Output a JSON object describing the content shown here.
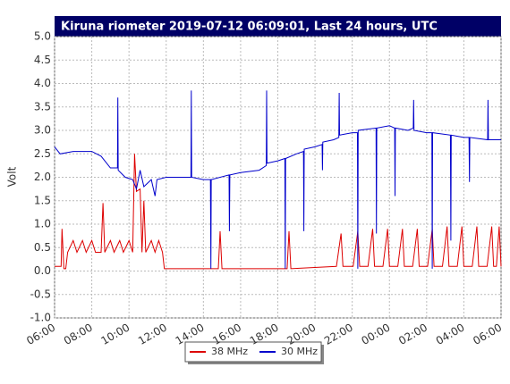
{
  "chart_data": {
    "type": "line",
    "title": "Kiruna riometer 2019-07-12 06:09:01, Last 24 hours, UTC",
    "y_label": "Volt",
    "xlim": [
      0,
      24
    ],
    "ylim": [
      -1,
      5
    ],
    "yticks": [
      {
        "value": -1,
        "label": "-1.0"
      },
      {
        "value": -0.5,
        "label": "-0.5"
      },
      {
        "value": 0,
        "label": "0.0"
      },
      {
        "value": 0.5,
        "label": "0.5"
      },
      {
        "value": 1,
        "label": "1.0"
      },
      {
        "value": 1.5,
        "label": "1.5"
      },
      {
        "value": 2,
        "label": "2.0"
      },
      {
        "value": 2.5,
        "label": "2.5"
      },
      {
        "value": 3,
        "label": "3.0"
      },
      {
        "value": 3.5,
        "label": "3.5"
      },
      {
        "value": 4,
        "label": "4.0"
      },
      {
        "value": 4.5,
        "label": "4.5"
      },
      {
        "value": 5,
        "label": "5.0"
      }
    ],
    "xticks": [
      {
        "value": 0,
        "label": "06:00"
      },
      {
        "value": 2,
        "label": "08:00"
      },
      {
        "value": 4,
        "label": "10:00"
      },
      {
        "value": 6,
        "label": "12:00"
      },
      {
        "value": 8,
        "label": "14:00"
      },
      {
        "value": 10,
        "label": "16:00"
      },
      {
        "value": 12,
        "label": "18:00"
      },
      {
        "value": 14,
        "label": "20:00"
      },
      {
        "value": 16,
        "label": "22:00"
      },
      {
        "value": 18,
        "label": "00:00"
      },
      {
        "value": 20,
        "label": "02:00"
      },
      {
        "value": 22,
        "label": "04:00"
      },
      {
        "value": 24,
        "label": "06:00"
      }
    ],
    "grid": true,
    "series": [
      {
        "name": "38 MHz",
        "color": "#dd0000",
        "x": [
          0,
          0.35,
          0.4,
          0.5,
          0.6,
          0.7,
          1,
          1.2,
          1.5,
          1.7,
          2,
          2.2,
          2.5,
          2.6,
          2.7,
          3,
          3.2,
          3.5,
          3.7,
          4,
          4.2,
          4.3,
          4.4,
          4.6,
          4.7,
          4.8,
          4.9,
          5.2,
          5.4,
          5.6,
          5.8,
          5.9,
          8.8,
          8.9,
          9.0,
          12.5,
          12.6,
          12.7,
          15.15,
          15.4,
          15.5,
          16.05,
          16.3,
          16.4,
          16.85,
          17.1,
          17.2,
          17.65,
          17.9,
          18.0,
          18.45,
          18.7,
          18.8,
          19.25,
          19.5,
          19.6,
          20.05,
          20.3,
          20.4,
          20.85,
          21.1,
          21.2,
          21.65,
          21.9,
          22.0,
          22.45,
          22.7,
          22.8,
          23.25,
          23.5,
          23.6,
          23.75,
          23.9,
          24
        ],
        "values": [
          0.1,
          0.1,
          0.9,
          0.05,
          0.05,
          0.4,
          0.65,
          0.4,
          0.65,
          0.4,
          0.65,
          0.4,
          0.4,
          1.45,
          0.4,
          0.65,
          0.4,
          0.65,
          0.4,
          0.65,
          0.4,
          2.5,
          1.7,
          1.75,
          0.4,
          1.5,
          0.4,
          0.65,
          0.4,
          0.65,
          0.4,
          0.05,
          0.05,
          0.85,
          0.05,
          0.05,
          0.85,
          0.05,
          0.1,
          0.8,
          0.1,
          0.1,
          0.85,
          0.1,
          0.1,
          0.9,
          0.1,
          0.1,
          0.9,
          0.1,
          0.1,
          0.9,
          0.1,
          0.1,
          0.9,
          0.1,
          0.1,
          0.9,
          0.1,
          0.1,
          0.95,
          0.1,
          0.1,
          0.95,
          0.1,
          0.1,
          0.95,
          0.1,
          0.1,
          0.95,
          0.1,
          0.1,
          0.95,
          0.1
        ]
      },
      {
        "name": "30 MHz",
        "color": "#0000cc",
        "x": [
          0,
          0.3,
          1,
          2,
          2.5,
          3,
          3.38,
          3.4,
          3.42,
          3.8,
          4.2,
          4.4,
          4.6,
          4.8,
          5.2,
          5.4,
          5.5,
          6,
          7,
          7.33,
          7.35,
          7.37,
          8,
          8.38,
          8.4,
          8.42,
          9.38,
          9.4,
          9.42,
          10,
          11,
          11.38,
          11.4,
          11.42,
          12,
          12.38,
          12.4,
          12.42,
          13,
          13.38,
          13.4,
          13.42,
          14,
          14.38,
          14.4,
          14.42,
          15,
          15.28,
          15.3,
          15.32,
          16,
          16.28,
          16.3,
          16.32,
          17.28,
          17.3,
          17.32,
          18,
          18.28,
          18.3,
          18.32,
          19,
          19.28,
          19.3,
          19.32,
          20,
          20.28,
          20.3,
          20.32,
          21.28,
          21.3,
          21.32,
          22,
          22.28,
          22.3,
          22.32,
          23.28,
          23.3,
          23.32,
          24
        ],
        "values": [
          2.65,
          2.5,
          2.55,
          2.55,
          2.45,
          2.2,
          2.2,
          3.7,
          2.15,
          2.0,
          1.95,
          1.75,
          2.15,
          1.8,
          1.95,
          1.6,
          1.95,
          2.0,
          2.0,
          2.0,
          3.85,
          2.0,
          1.95,
          1.95,
          0.05,
          1.95,
          2.05,
          0.85,
          2.05,
          2.1,
          2.15,
          2.25,
          3.85,
          2.3,
          2.35,
          2.4,
          0.05,
          2.4,
          2.5,
          2.55,
          0.85,
          2.6,
          2.65,
          2.7,
          2.15,
          2.75,
          2.8,
          2.85,
          3.8,
          2.9,
          2.95,
          2.95,
          0.05,
          3.0,
          3.05,
          0.8,
          3.05,
          3.1,
          3.05,
          1.6,
          3.05,
          3.0,
          3.05,
          3.65,
          3.0,
          2.95,
          2.95,
          0.05,
          2.95,
          2.9,
          0.65,
          2.9,
          2.85,
          2.85,
          1.9,
          2.85,
          2.8,
          3.65,
          2.8,
          2.8
        ]
      }
    ]
  }
}
